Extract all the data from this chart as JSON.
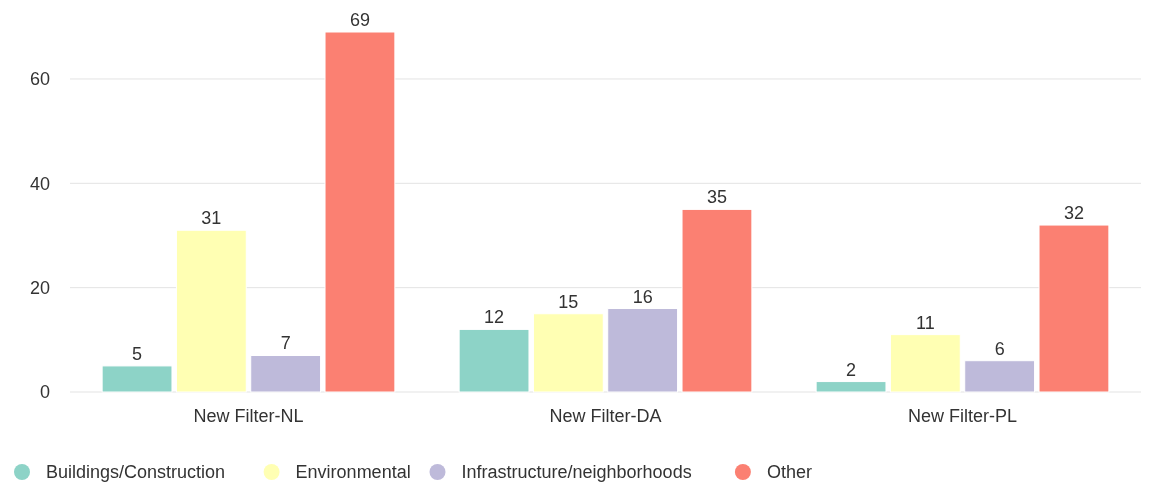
{
  "chart_data": {
    "type": "bar",
    "categories": [
      "New Filter-NL",
      "New Filter-DA",
      "New Filter-PL"
    ],
    "series": [
      {
        "name": "Buildings/Construction",
        "color": "#8dd3c7",
        "values": [
          5,
          12,
          2
        ]
      },
      {
        "name": "Environmental",
        "color": "#ffffb3",
        "values": [
          31,
          15,
          11
        ]
      },
      {
        "name": "Infrastructure/neighborhoods",
        "color": "#bebada",
        "values": [
          7,
          16,
          6
        ]
      },
      {
        "name": "Other",
        "color": "#fb8072",
        "values": [
          69,
          35,
          32
        ]
      }
    ],
    "ylim": [
      0,
      69
    ],
    "yticks": [
      0,
      20,
      40,
      60
    ],
    "grid": "y",
    "legend": "bottom",
    "data_labels": true
  }
}
